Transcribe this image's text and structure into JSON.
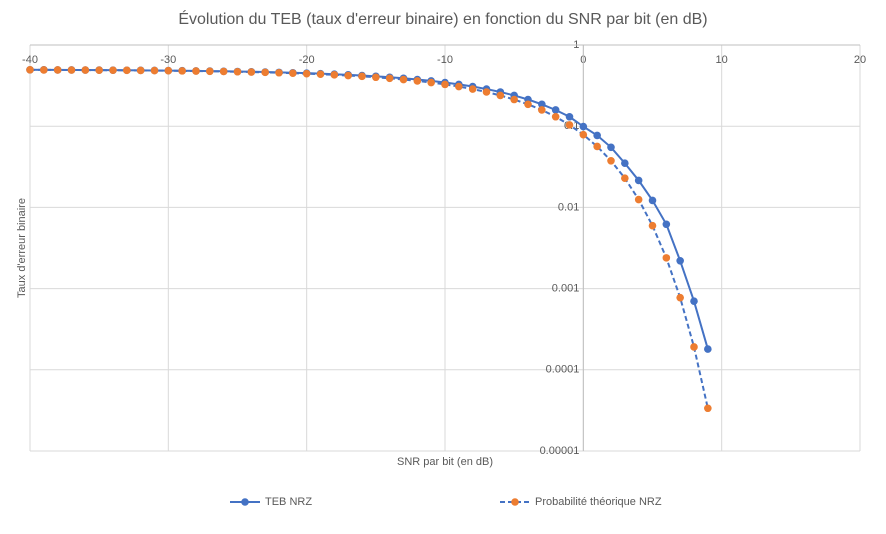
{
  "chart_data": {
    "type": "line",
    "title": "Évolution du TEB (taux d'erreur binaire) en fonction du SNR par bit (en dB)",
    "x_label": "SNR par bit (en dB)",
    "y_label": "Taux d'erreur binaire",
    "x": [
      -40,
      -39,
      -38,
      -37,
      -36,
      -35,
      -34,
      -33,
      -32,
      -31,
      -30,
      -29,
      -28,
      -27,
      -26,
      -25,
      -24,
      -23,
      -22,
      -21,
      -20,
      -19,
      -18,
      -17,
      -16,
      -15,
      -14,
      -13,
      -12,
      -11,
      -10,
      -9,
      -8,
      -7,
      -6,
      -5,
      -4,
      -3,
      -2,
      -1,
      0,
      1,
      2,
      3,
      4,
      5,
      6,
      7,
      8,
      9
    ],
    "series": [
      {
        "name": "TEB NRZ",
        "color": "#4472c4",
        "line_color": "#4472c4",
        "dashed": false,
        "values": [
          0.495,
          0.4944,
          0.4937,
          0.4929,
          0.492,
          0.4911,
          0.49,
          0.4887,
          0.4874,
          0.4858,
          0.4841,
          0.4822,
          0.48,
          0.4775,
          0.4748,
          0.4717,
          0.4683,
          0.4644,
          0.4602,
          0.4552,
          0.4498,
          0.4438,
          0.437,
          0.4293,
          0.4208,
          0.4113,
          0.4007,
          0.389,
          0.3758,
          0.3613,
          0.3451,
          0.3273,
          0.3079,
          0.2867,
          0.2638,
          0.2392,
          0.2132,
          0.1861,
          0.1584,
          0.1307,
          0.099,
          0.077,
          0.055,
          0.035,
          0.0215,
          0.0122,
          0.0062,
          0.0022,
          0.0007,
          0.00018
        ]
      },
      {
        "name": "Probabilité théorique NRZ",
        "color": "#ed7d31",
        "line_color": "#4472c4",
        "dashed": true,
        "values": [
          0.4944,
          0.4937,
          0.4929,
          0.492,
          0.4911,
          0.49,
          0.4887,
          0.4874,
          0.4858,
          0.4841,
          0.4822,
          0.48,
          0.4775,
          0.4748,
          0.4717,
          0.4683,
          0.4644,
          0.4602,
          0.4552,
          0.4498,
          0.4438,
          0.437,
          0.4293,
          0.4208,
          0.4113,
          0.4007,
          0.389,
          0.3758,
          0.3613,
          0.3451,
          0.3273,
          0.3079,
          0.2867,
          0.2638,
          0.2392,
          0.2132,
          0.1861,
          0.1584,
          0.1307,
          0.1038,
          0.0786,
          0.0563,
          0.0375,
          0.0229,
          0.0125,
          0.00595,
          0.00239,
          0.000773,
          0.000191,
          3.36e-05
        ]
      }
    ],
    "xlim": [
      -40,
      20
    ],
    "xticks": [
      -40,
      -30,
      -20,
      -10,
      0,
      10,
      20
    ],
    "ylim": [
      1e-05,
      1
    ],
    "yticks": [
      1,
      0.1,
      0.01,
      0.001,
      0.0001,
      1e-05
    ],
    "y_log": true,
    "grid": true,
    "legend": "bottom"
  }
}
